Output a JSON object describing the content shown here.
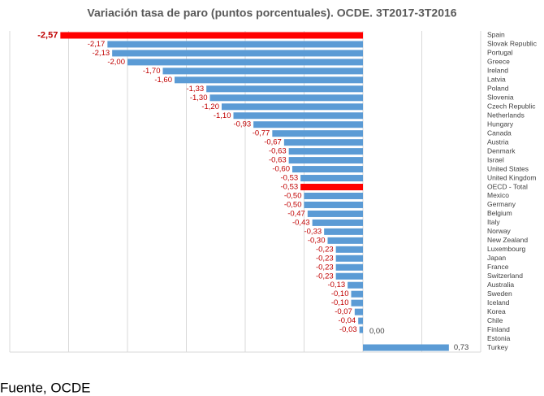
{
  "chart_data": {
    "type": "bar",
    "orientation": "horizontal",
    "title": "Variación tasa de paro (puntos porcentuales). OCDE. 3T2017-3T2016",
    "categories": [
      "Spain",
      "Slovak Republic",
      "Portugal",
      "Greece",
      "Ireland",
      "Latvia",
      "Poland",
      "Slovenia",
      "Czech Republic",
      "Netherlands",
      "Hungary",
      "Canada",
      "Austria",
      "Denmark",
      "Israel",
      "United States",
      "United Kingdom",
      "OECD - Total",
      "Mexico",
      "Germany",
      "Belgium",
      "Italy",
      "Norway",
      "New Zealand",
      "Luxembourg",
      "Japan",
      "France",
      "Switzerland",
      "Australia",
      "Sweden",
      "Iceland",
      "Korea",
      "Chile",
      "Finland",
      "Estonia",
      "Turkey"
    ],
    "values": [
      -2.57,
      -2.17,
      -2.13,
      -2.0,
      -1.7,
      -1.6,
      -1.33,
      -1.3,
      -1.2,
      -1.1,
      -0.93,
      -0.77,
      -0.67,
      -0.63,
      -0.63,
      -0.6,
      -0.53,
      -0.53,
      -0.5,
      -0.5,
      -0.47,
      -0.43,
      -0.33,
      -0.3,
      -0.23,
      -0.23,
      -0.23,
      -0.23,
      -0.13,
      -0.1,
      -0.1,
      -0.07,
      -0.04,
      -0.03,
      0.0,
      0.73
    ],
    "value_labels": [
      "-2,57",
      "-2,17",
      "-2,13",
      "-2,00",
      "-1,70",
      "-1,60",
      "-1,33",
      "-1,30",
      "-1,20",
      "-1,10",
      "-0,93",
      "-0,77",
      "-0,67",
      "-0,63",
      "-0,63",
      "-0,60",
      "-0,53",
      "-0,53",
      "-0,50",
      "-0,50",
      "-0,47",
      "-0,43",
      "-0,33",
      "-0,30",
      "-0,23",
      "-0,23",
      "-0,23",
      "-0,23",
      "-0,13",
      "-0,10",
      "-0,10",
      "-0,07",
      "-0,04",
      "-0,03",
      "0,00",
      "0,73"
    ],
    "colors": [
      "#ff0000",
      "#5b9bd5",
      "#5b9bd5",
      "#5b9bd5",
      "#5b9bd5",
      "#5b9bd5",
      "#5b9bd5",
      "#5b9bd5",
      "#5b9bd5",
      "#5b9bd5",
      "#5b9bd5",
      "#5b9bd5",
      "#5b9bd5",
      "#5b9bd5",
      "#5b9bd5",
      "#5b9bd5",
      "#5b9bd5",
      "#ff0000",
      "#5b9bd5",
      "#5b9bd5",
      "#5b9bd5",
      "#5b9bd5",
      "#5b9bd5",
      "#5b9bd5",
      "#5b9bd5",
      "#5b9bd5",
      "#5b9bd5",
      "#5b9bd5",
      "#5b9bd5",
      "#5b9bd5",
      "#5b9bd5",
      "#5b9bd5",
      "#5b9bd5",
      "#5b9bd5",
      "#5b9bd5",
      "#5b9bd5"
    ],
    "xlim": [
      -3,
      1
    ],
    "xticks": [
      -3,
      -2.5,
      -2,
      -1.5,
      -1,
      -0.5,
      0,
      0.5,
      1
    ],
    "grid": true,
    "source": "Fuente, OCDE"
  }
}
